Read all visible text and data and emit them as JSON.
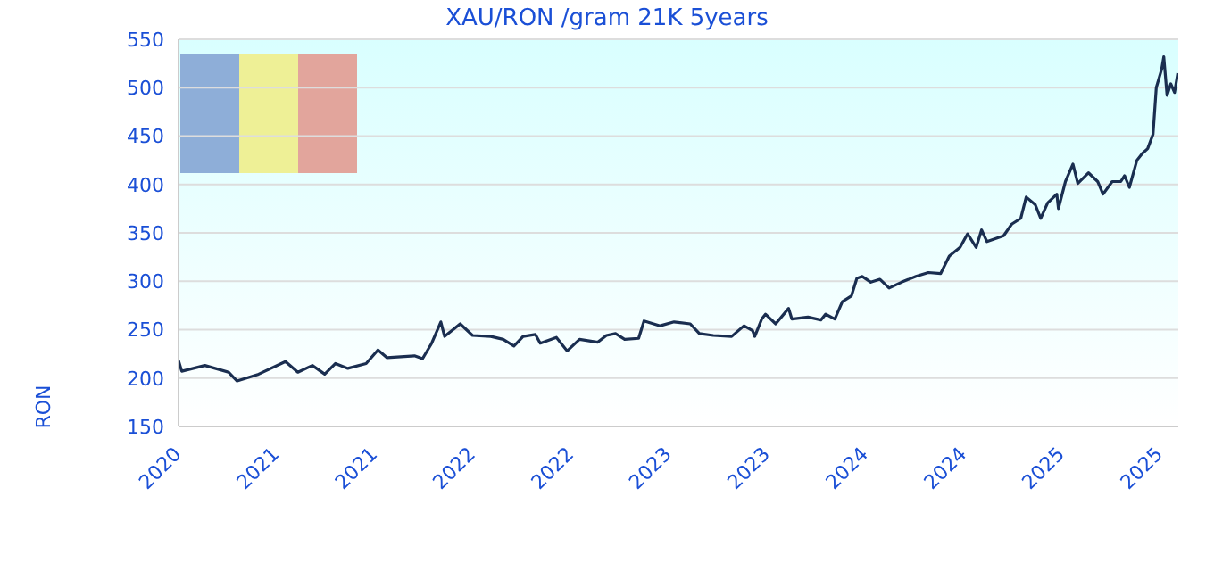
{
  "chart_data": {
    "type": "line",
    "title": "XAU/RON /gram 21K 5years",
    "ylabel": "RON",
    "x": [
      "2020-10-19",
      "2020-10-25",
      "2020-12-07",
      "2021-01-20",
      "2021-02-05",
      "2021-03-17",
      "2021-05-06",
      "2021-05-29",
      "2021-06-25",
      "2021-07-18",
      "2021-08-07",
      "2021-08-30",
      "2021-10-03",
      "2021-10-25",
      "2021-11-11",
      "2022-01-01",
      "2022-01-16",
      "2022-02-02",
      "2022-02-19",
      "2022-02-26",
      "2022-03-27",
      "2022-04-19",
      "2022-05-23",
      "2022-06-15",
      "2022-07-05",
      "2022-07-22",
      "2022-08-14",
      "2022-08-23",
      "2022-09-22",
      "2022-10-12",
      "2022-11-04",
      "2022-12-08",
      "2022-12-24",
      "2023-01-10",
      "2023-01-27",
      "2023-02-22",
      "2023-03-04",
      "2023-04-03",
      "2023-04-29",
      "2023-05-29",
      "2023-06-15",
      "2023-07-11",
      "2023-08-14",
      "2023-09-06",
      "2023-09-22",
      "2023-09-26",
      "2023-10-09",
      "2023-10-16",
      "2023-11-04",
      "2023-11-28",
      "2023-12-04",
      "2024-01-03",
      "2024-01-27",
      "2024-02-05",
      "2024-02-22",
      "2024-03-07",
      "2024-03-24",
      "2024-04-03",
      "2024-04-13",
      "2024-04-29",
      "2024-05-16",
      "2024-06-02",
      "2024-06-25",
      "2024-07-22",
      "2024-08-14",
      "2024-09-06",
      "2024-09-22",
      "2024-10-12",
      "2024-10-26",
      "2024-11-11",
      "2024-11-21",
      "2024-12-01",
      "2025-01-01",
      "2025-01-16",
      "2025-02-02",
      "2025-02-12",
      "2025-03-01",
      "2025-03-11",
      "2025-03-24",
      "2025-04-10",
      "2025-04-13",
      "2025-04-26",
      "2025-05-10",
      "2025-05-19",
      "2025-06-08",
      "2025-06-25",
      "2025-07-05",
      "2025-07-22",
      "2025-08-07",
      "2025-08-14",
      "2025-08-23",
      "2025-09-06",
      "2025-09-16",
      "2025-09-26",
      "2025-10-06",
      "2025-10-12",
      "2025-10-22",
      "2025-10-26",
      "2025-11-01",
      "2025-11-08",
      "2025-11-15",
      "2025-11-21"
    ],
    "values": [
      218,
      207,
      213,
      206,
      197,
      204,
      217,
      206,
      213,
      204,
      215,
      210,
      215,
      229,
      221,
      223,
      220,
      236,
      258,
      243,
      256,
      244,
      243,
      240,
      233,
      243,
      245,
      236,
      242,
      228,
      240,
      237,
      244,
      246,
      240,
      241,
      259,
      254,
      258,
      256,
      246,
      244,
      243,
      254,
      249,
      243,
      261,
      266,
      256,
      272,
      261,
      263,
      260,
      266,
      261,
      279,
      285,
      303,
      305,
      299,
      302,
      293,
      299,
      305,
      309,
      308,
      326,
      335,
      349,
      335,
      353,
      341,
      347,
      359,
      365,
      387,
      379,
      365,
      381,
      390,
      375,
      403,
      421,
      401,
      412,
      403,
      390,
      403,
      403,
      409,
      397,
      425,
      432,
      437,
      452,
      500,
      519,
      532,
      492,
      504,
      495,
      515
    ],
    "color": "#1a2e50",
    "xlim": [
      "2020-10-19",
      "2025-11-22"
    ],
    "xticks": [
      {
        "value": "2020-10-19",
        "label": "2020"
      },
      {
        "value": "2021-04-19",
        "label": "2021"
      },
      {
        "value": "2021-10-19",
        "label": "2021"
      },
      {
        "value": "2022-04-19",
        "label": "2022"
      },
      {
        "value": "2022-10-19",
        "label": "2022"
      },
      {
        "value": "2023-04-19",
        "label": "2023"
      },
      {
        "value": "2023-10-19",
        "label": "2023"
      },
      {
        "value": "2024-04-19",
        "label": "2024"
      },
      {
        "value": "2024-10-19",
        "label": "2024"
      },
      {
        "value": "2025-04-19",
        "label": "2025"
      },
      {
        "value": "2025-10-19",
        "label": "2025"
      }
    ],
    "ylim": [
      150,
      550
    ],
    "yticks": [
      150,
      200,
      250,
      300,
      350,
      400,
      450,
      500,
      550
    ],
    "grid": "y"
  }
}
